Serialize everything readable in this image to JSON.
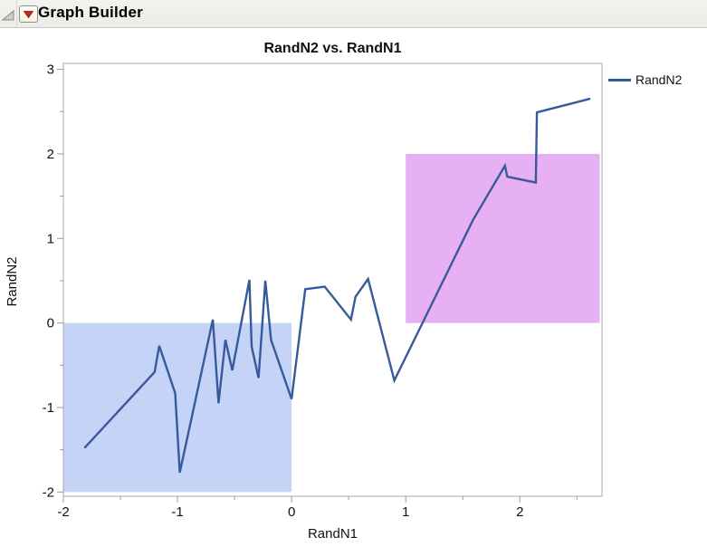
{
  "window": {
    "header": {
      "title": "Graph Builder",
      "collapse_icon": "outline-collapse-triangle",
      "menu_icon": "red-triangle-menu"
    }
  },
  "chart_data": {
    "type": "line",
    "title": "RandN2 vs. RandN1",
    "xlabel": "RandN1",
    "ylabel": "RandN2",
    "xlim": [
      -2,
      2.72
    ],
    "ylim": [
      -2.05,
      3.07
    ],
    "x_ticks": [
      -2,
      -1,
      0,
      1,
      2
    ],
    "y_ticks": [
      -2,
      -1,
      0,
      1,
      2,
      3
    ],
    "minor_tick_step": 0.5,
    "grid": false,
    "background": "#ffffff",
    "frame_color": "#a8a8a8",
    "tick_color": "#9b9b9b",
    "legend": {
      "position": "top-right",
      "entries": [
        {
          "label": "RandN2",
          "color": "#375A9B"
        }
      ]
    },
    "series": [
      {
        "name": "RandN2",
        "color": "#375A9B",
        "width": 2.4,
        "points": [
          [
            -1.81,
            -1.47
          ],
          [
            -1.2,
            -0.58
          ],
          [
            -1.16,
            -0.27
          ],
          [
            -1.02,
            -0.83
          ],
          [
            -0.98,
            -1.77
          ],
          [
            -0.69,
            0.04
          ],
          [
            -0.64,
            -0.95
          ],
          [
            -0.58,
            -0.2
          ],
          [
            -0.52,
            -0.56
          ],
          [
            -0.37,
            0.51
          ],
          [
            -0.35,
            -0.28
          ],
          [
            -0.29,
            -0.65
          ],
          [
            -0.23,
            0.5
          ],
          [
            -0.18,
            -0.2
          ],
          [
            0.0,
            -0.9
          ],
          [
            0.12,
            0.4
          ],
          [
            0.29,
            0.43
          ],
          [
            0.52,
            0.04
          ],
          [
            0.56,
            0.31
          ],
          [
            0.67,
            0.52
          ],
          [
            0.9,
            -0.68
          ],
          [
            1.59,
            1.22
          ],
          [
            1.87,
            1.86
          ],
          [
            1.89,
            1.73
          ],
          [
            2.14,
            1.66
          ],
          [
            2.15,
            2.49
          ],
          [
            2.61,
            2.65
          ]
        ]
      }
    ],
    "regions": [
      {
        "name": "highlight-region-blue",
        "x": [
          -2.0,
          0.0
        ],
        "y": [
          -2.0,
          0.0
        ],
        "color": "#C5D3F6"
      },
      {
        "name": "highlight-region-magenta",
        "x": [
          1.0,
          2.7
        ],
        "y": [
          0.0,
          2.0
        ],
        "color": "#E7B0F3"
      }
    ]
  }
}
